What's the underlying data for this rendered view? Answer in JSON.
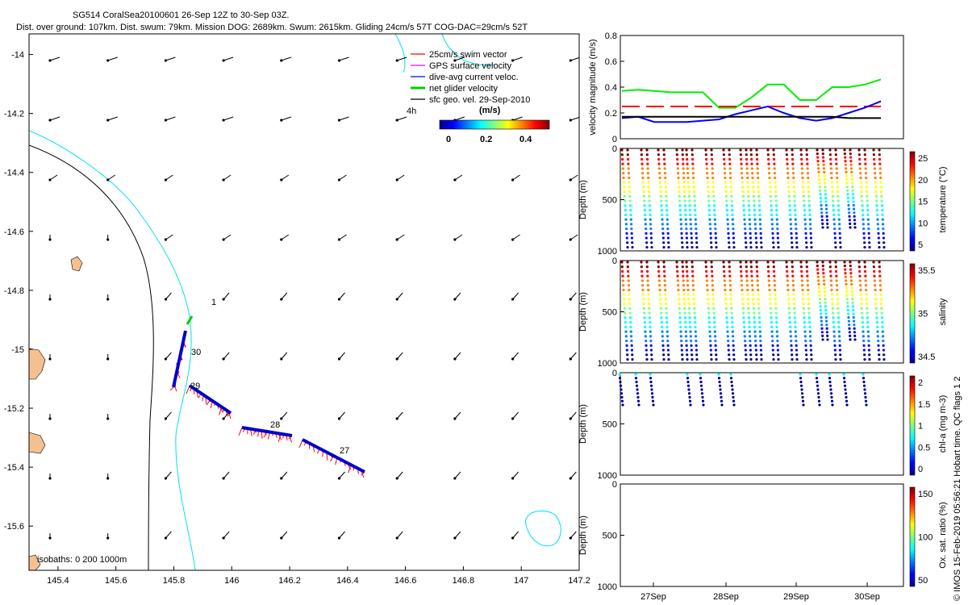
{
  "title": {
    "line1": "SG514 CoralSea20100601 26-Sep 12Z to 30-Sep 03Z.",
    "line2": "Dist. over ground: 107km. Dist. swum: 79km. Mission DOG: 2689km. Swum: 2615km. Gliding 24cm/s 57T COG-DAC=29cm/s 52T"
  },
  "map": {
    "x_ticks": [
      "145.4",
      "145.6",
      "145.8",
      "146",
      "146.2",
      "146.4",
      "146.6",
      "146.8",
      "147",
      "147.2"
    ],
    "y_ticks": [
      "-14",
      "-14.2",
      "-14.4",
      "-14.6",
      "-14.8",
      "-15",
      "-15.2",
      "-15.4",
      "-15.6"
    ],
    "xlim": [
      145.3,
      147.2
    ],
    "ylim": [
      -15.75,
      -13.93
    ],
    "legend": [
      {
        "label": "25cm/s swim vector",
        "color": "#ff0000"
      },
      {
        "label": "GPS surface velocity",
        "color": "#ff00ff"
      },
      {
        "label": "dive-avg current veloc.",
        "color": "#0000ff"
      },
      {
        "label": "net glider velocity",
        "color": "#00cc00"
      },
      {
        "label": "sfc geo. vel. 29-Sep-2010",
        "color": "#000000"
      }
    ],
    "legend_note": "4h",
    "colorbar_title": "(m/s)",
    "colorbar_ticks": [
      "0",
      "0.2",
      "0.4"
    ],
    "day_labels": [
      "1",
      "30",
      "29",
      "28",
      "27"
    ],
    "isobaths_label": "isobaths: 0   200  1000m"
  },
  "velocity_panel": {
    "ylabel": "velocity magnitude (m/s)",
    "y_ticks": [
      "0",
      "0.2",
      "0.4",
      "0.6",
      "0.8"
    ],
    "ylim": [
      0,
      0.8
    ],
    "series": [
      {
        "name": "net glider velocity",
        "color": "#00ee00",
        "values": [
          0.37,
          0.38,
          0.37,
          0.36,
          0.36,
          0.36,
          0.24,
          0.24,
          0.32,
          0.42,
          0.42,
          0.3,
          0.3,
          0.4,
          0.4,
          0.42,
          0.46
        ]
      },
      {
        "name": "25cm/s swim vector",
        "color": "#ff0000",
        "values": [
          0.25,
          0.25,
          0.25,
          0.25,
          0.25,
          0.25,
          0.25,
          0.25,
          0.25,
          0.25,
          0.25,
          0.25,
          0.25,
          0.25,
          0.25,
          0.25,
          0.25
        ]
      },
      {
        "name": "dive-avg current veloc.",
        "color": "#0000ff",
        "values": [
          0.16,
          0.17,
          0.13,
          0.13,
          0.13,
          0.14,
          0.15,
          0.19,
          0.22,
          0.25,
          0.2,
          0.16,
          0.14,
          0.16,
          0.2,
          0.24,
          0.29
        ]
      },
      {
        "name": "sfc geo. vel.",
        "color": "#000000",
        "values": [
          0.17,
          0.17,
          0.17,
          0.17,
          0.17,
          0.17,
          0.17,
          0.17,
          0.17,
          0.17,
          0.17,
          0.17,
          0.17,
          0.17,
          0.16,
          0.16,
          0.16
        ]
      }
    ]
  },
  "profile_panels": [
    {
      "ylabel": "Depth (m)",
      "y_ticks": [
        "0",
        "500",
        "1000"
      ],
      "cblabel": "temperature (°C)",
      "cb_ticks": [
        "5",
        "10",
        "15",
        "20",
        "25"
      ],
      "cmap_reverse": false
    },
    {
      "ylabel": "Depth (m)",
      "y_ticks": [
        "0",
        "500",
        "1000"
      ],
      "cblabel": "salinity",
      "cb_ticks": [
        "34.5",
        "35",
        "35.5"
      ],
      "cmap_reverse": false
    },
    {
      "ylabel": "Depth (m)",
      "y_ticks": [
        "0",
        "500",
        "1000"
      ],
      "cblabel": "chl-a (mg m-3)",
      "cb_ticks": [
        "0",
        "0.5",
        "1",
        "1.5",
        "2"
      ],
      "cmap_reverse": true
    },
    {
      "ylabel": "Depth (m)",
      "y_ticks": [
        "0",
        "500",
        "1000"
      ],
      "cblabel": "Ox. sat. ratio (%)",
      "cb_ticks": [
        "50",
        "100",
        "150"
      ],
      "cmap_reverse": false
    }
  ],
  "time_axis": {
    "ticks": [
      "27Sep",
      "28Sep",
      "29Sep",
      "30Sep"
    ]
  },
  "side_text": "© IMOS 15-Feb-2019 05:56:21 Hobart time. QC flags 1  2"
}
